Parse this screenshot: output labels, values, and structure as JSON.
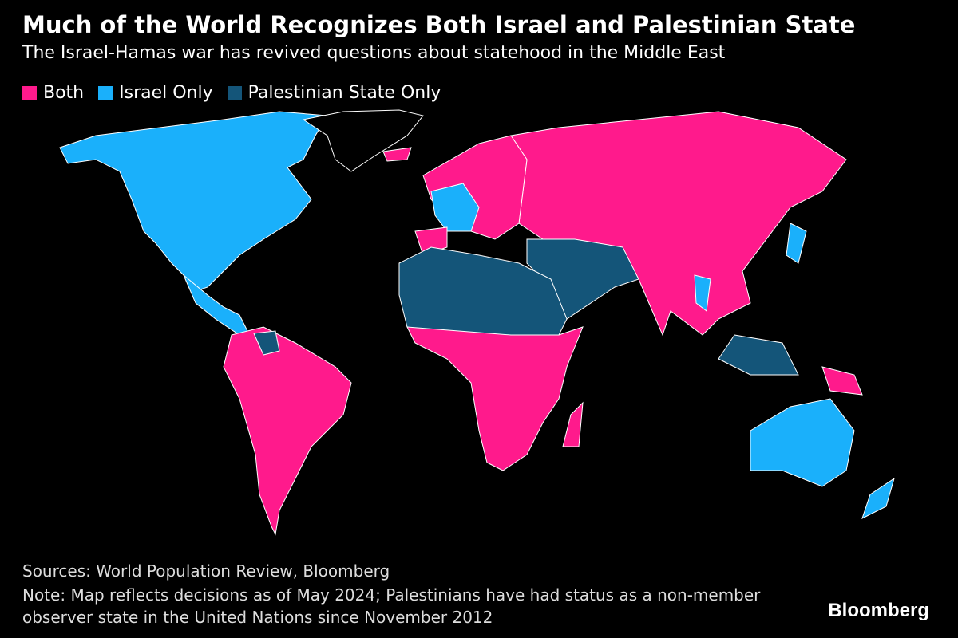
{
  "title": "Much of the World Recognizes Both Israel and Palestinian State",
  "subtitle": "The Israel-Hamas war has revived questions about statehood in the Middle East",
  "legend": [
    {
      "label": "Both",
      "color": "#ff1a8c"
    },
    {
      "label": "Israel Only",
      "color": "#1ab0fb"
    },
    {
      "label": "Palestinian State Only",
      "color": "#145579"
    }
  ],
  "sources": "Sources: World Population Review, Bloomberg",
  "note": "Note: Map reflects decisions as of May 2024; Palestinians have had status as a non-member observer state in the United Nations since November 2012",
  "logo": "Bloomberg"
}
